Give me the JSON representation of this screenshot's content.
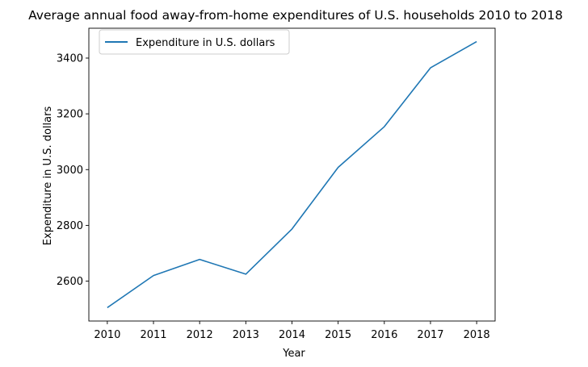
{
  "chart_data": {
    "type": "line",
    "title": "Average annual food away-from-home expenditures of U.S. households 2010 to 2018",
    "xlabel": "Year",
    "ylabel": "Expenditure in U.S. dollars",
    "x": [
      "2010",
      "2011",
      "2012",
      "2013",
      "2014",
      "2015",
      "2016",
      "2017",
      "2018"
    ],
    "series": [
      {
        "name": "Expenditure in U.S. dollars",
        "color": "#1f77b4",
        "values": [
          2505,
          2620,
          2678,
          2625,
          2787,
          3008,
          3154,
          3365,
          3459
        ]
      }
    ],
    "ylim": [
      2457,
      3507
    ],
    "yticks": [
      2600,
      2800,
      3000,
      3200,
      3400
    ],
    "grid": false,
    "legend": "top-left"
  }
}
